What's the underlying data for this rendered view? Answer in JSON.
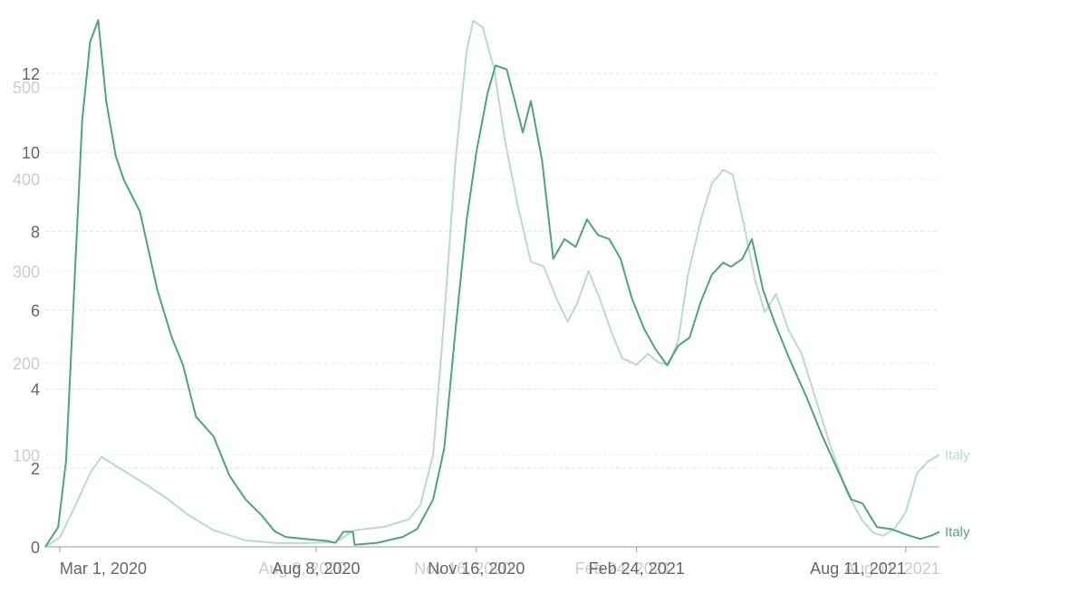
{
  "chart_data": {
    "type": "line",
    "x_axis": {
      "tick_labels": [
        {
          "label": "Mar 1, 2020",
          "date": "2020-03-01",
          "color": "#666666"
        },
        {
          "label": "Aug 8, 2020",
          "date": "2020-08-08",
          "color": "#666666"
        },
        {
          "label": "Nov 16, 2020",
          "date": "2020-11-16",
          "color": "#666666"
        },
        {
          "label": "Feb 24, 2021",
          "date": "2021-02-24",
          "color": "#666666"
        },
        {
          "label": "Aug 11, 2021",
          "date": "2021-08-11",
          "color": "#666666"
        }
      ],
      "faint_tick_labels": [
        {
          "label": "Aug 8, 2020",
          "date": "2020-08-08",
          "color": "#cccccc"
        },
        {
          "label": "Nov 16, 2020",
          "date": "2020-11-16",
          "color": "#cccccc"
        },
        {
          "label": "Feb 24, 2021",
          "date": "2021-02-24",
          "color": "#cccccc"
        },
        {
          "label": "Aug 11, 2021",
          "date": "2021-08-11",
          "color": "#cccccc"
        }
      ],
      "range": [
        "2020-02-21",
        "2021-09-01"
      ]
    },
    "y_axis_primary": {
      "ticks": [
        0,
        2,
        4,
        6,
        8,
        10,
        12
      ],
      "range": [
        0,
        13.4
      ],
      "color": "#666666"
    },
    "y_axis_secondary": {
      "ticks": [
        0,
        100,
        200,
        300,
        400,
        500
      ],
      "range": [
        0,
        575
      ],
      "color": "#cccccc"
    },
    "grid": true,
    "series": [
      {
        "name": "Italy",
        "axis": "secondary",
        "color": "#b7dcc8",
        "points": [
          [
            "2020-02-21",
            0
          ],
          [
            "2020-03-01",
            10
          ],
          [
            "2020-03-10",
            42
          ],
          [
            "2020-03-20",
            80
          ],
          [
            "2020-03-27",
            98
          ],
          [
            "2020-04-05",
            88
          ],
          [
            "2020-04-20",
            72
          ],
          [
            "2020-05-05",
            55
          ],
          [
            "2020-05-20",
            35
          ],
          [
            "2020-06-05",
            18
          ],
          [
            "2020-06-25",
            7
          ],
          [
            "2020-07-15",
            4
          ],
          [
            "2020-08-01",
            4
          ],
          [
            "2020-08-20",
            5
          ],
          [
            "2020-09-01",
            18
          ],
          [
            "2020-09-20",
            22
          ],
          [
            "2020-10-05",
            30
          ],
          [
            "2020-10-12",
            45
          ],
          [
            "2020-10-20",
            100
          ],
          [
            "2020-10-27",
            250
          ],
          [
            "2020-11-03",
            420
          ],
          [
            "2020-11-10",
            540
          ],
          [
            "2020-11-14",
            572
          ],
          [
            "2020-11-20",
            565
          ],
          [
            "2020-11-27",
            520
          ],
          [
            "2020-12-04",
            440
          ],
          [
            "2020-12-12",
            370
          ],
          [
            "2020-12-20",
            310
          ],
          [
            "2020-12-28",
            305
          ],
          [
            "2021-01-05",
            270
          ],
          [
            "2021-01-12",
            245
          ],
          [
            "2021-01-18",
            265
          ],
          [
            "2021-01-25",
            300
          ],
          [
            "2021-02-01",
            270
          ],
          [
            "2021-02-08",
            235
          ],
          [
            "2021-02-15",
            205
          ],
          [
            "2021-02-24",
            198
          ],
          [
            "2021-03-03",
            210
          ],
          [
            "2021-03-10",
            200
          ],
          [
            "2021-03-16",
            198
          ],
          [
            "2021-03-22",
            225
          ],
          [
            "2021-03-28",
            295
          ],
          [
            "2021-04-05",
            355
          ],
          [
            "2021-04-12",
            395
          ],
          [
            "2021-04-19",
            410
          ],
          [
            "2021-04-25",
            405
          ],
          [
            "2021-05-02",
            350
          ],
          [
            "2021-05-09",
            290
          ],
          [
            "2021-05-15",
            255
          ],
          [
            "2021-05-22",
            275
          ],
          [
            "2021-05-30",
            235
          ],
          [
            "2021-06-07",
            210
          ],
          [
            "2021-06-15",
            165
          ],
          [
            "2021-06-25",
            110
          ],
          [
            "2021-07-05",
            60
          ],
          [
            "2021-07-15",
            28
          ],
          [
            "2021-07-22",
            15
          ],
          [
            "2021-07-28",
            12
          ],
          [
            "2021-08-04",
            20
          ],
          [
            "2021-08-11",
            38
          ],
          [
            "2021-08-18",
            80
          ],
          [
            "2021-08-25",
            93
          ],
          [
            "2021-09-01",
            100
          ]
        ]
      },
      {
        "name": "Italy",
        "axis": "primary",
        "color": "#4ea57a",
        "points": [
          [
            "2020-02-21",
            0
          ],
          [
            "2020-02-29",
            0.5
          ],
          [
            "2020-03-05",
            2.2
          ],
          [
            "2020-03-10",
            6.5
          ],
          [
            "2020-03-15",
            10.8
          ],
          [
            "2020-03-20",
            12.8
          ],
          [
            "2020-03-25",
            13.35
          ],
          [
            "2020-03-30",
            11.3
          ],
          [
            "2020-04-05",
            9.9
          ],
          [
            "2020-04-10",
            9.3
          ],
          [
            "2020-04-20",
            8.5
          ],
          [
            "2020-05-01",
            6.5
          ],
          [
            "2020-05-10",
            5.3
          ],
          [
            "2020-05-17",
            4.6
          ],
          [
            "2020-05-25",
            3.3
          ],
          [
            "2020-06-05",
            2.8
          ],
          [
            "2020-06-15",
            1.8
          ],
          [
            "2020-06-25",
            1.2
          ],
          [
            "2020-07-05",
            0.8
          ],
          [
            "2020-07-13",
            0.4
          ],
          [
            "2020-07-20",
            0.25
          ],
          [
            "2020-08-01",
            0.2
          ],
          [
            "2020-08-15",
            0.15
          ],
          [
            "2020-08-20",
            0.1
          ],
          [
            "2020-08-25",
            0.38
          ],
          [
            "2020-08-31",
            0.38
          ],
          [
            "2020-09-01",
            0.05
          ],
          [
            "2020-09-15",
            0.1
          ],
          [
            "2020-10-01",
            0.25
          ],
          [
            "2020-10-10",
            0.45
          ],
          [
            "2020-10-20",
            1.2
          ],
          [
            "2020-10-27",
            2.5
          ],
          [
            "2020-11-03",
            5.5
          ],
          [
            "2020-11-10",
            8.3
          ],
          [
            "2020-11-16",
            10.0
          ],
          [
            "2020-11-23",
            11.5
          ],
          [
            "2020-11-28",
            12.2
          ],
          [
            "2020-12-05",
            12.1
          ],
          [
            "2020-12-10",
            11.3
          ],
          [
            "2020-12-15",
            10.5
          ],
          [
            "2020-12-20",
            11.3
          ],
          [
            "2020-12-27",
            9.8
          ],
          [
            "2021-01-03",
            7.3
          ],
          [
            "2021-01-10",
            7.8
          ],
          [
            "2021-01-17",
            7.6
          ],
          [
            "2021-01-24",
            8.3
          ],
          [
            "2021-01-31",
            7.9
          ],
          [
            "2021-02-07",
            7.8
          ],
          [
            "2021-02-14",
            7.3
          ],
          [
            "2021-02-21",
            6.3
          ],
          [
            "2021-03-01",
            5.5
          ],
          [
            "2021-03-08",
            5.0
          ],
          [
            "2021-03-15",
            4.6
          ],
          [
            "2021-03-22",
            5.1
          ],
          [
            "2021-03-29",
            5.3
          ],
          [
            "2021-04-05",
            6.2
          ],
          [
            "2021-04-12",
            6.9
          ],
          [
            "2021-04-19",
            7.2
          ],
          [
            "2021-04-24",
            7.1
          ],
          [
            "2021-05-01",
            7.3
          ],
          [
            "2021-05-07",
            7.8
          ],
          [
            "2021-05-14",
            6.5
          ],
          [
            "2021-05-21",
            5.7
          ],
          [
            "2021-05-30",
            4.8
          ],
          [
            "2021-06-10",
            3.8
          ],
          [
            "2021-06-20",
            2.8
          ],
          [
            "2021-06-30",
            1.9
          ],
          [
            "2021-07-08",
            1.2
          ],
          [
            "2021-07-15",
            1.1
          ],
          [
            "2021-07-24",
            0.5
          ],
          [
            "2021-08-02",
            0.45
          ],
          [
            "2021-08-12",
            0.3
          ],
          [
            "2021-08-20",
            0.2
          ],
          [
            "2021-08-28",
            0.3
          ],
          [
            "2021-09-01",
            0.38
          ]
        ]
      }
    ]
  }
}
